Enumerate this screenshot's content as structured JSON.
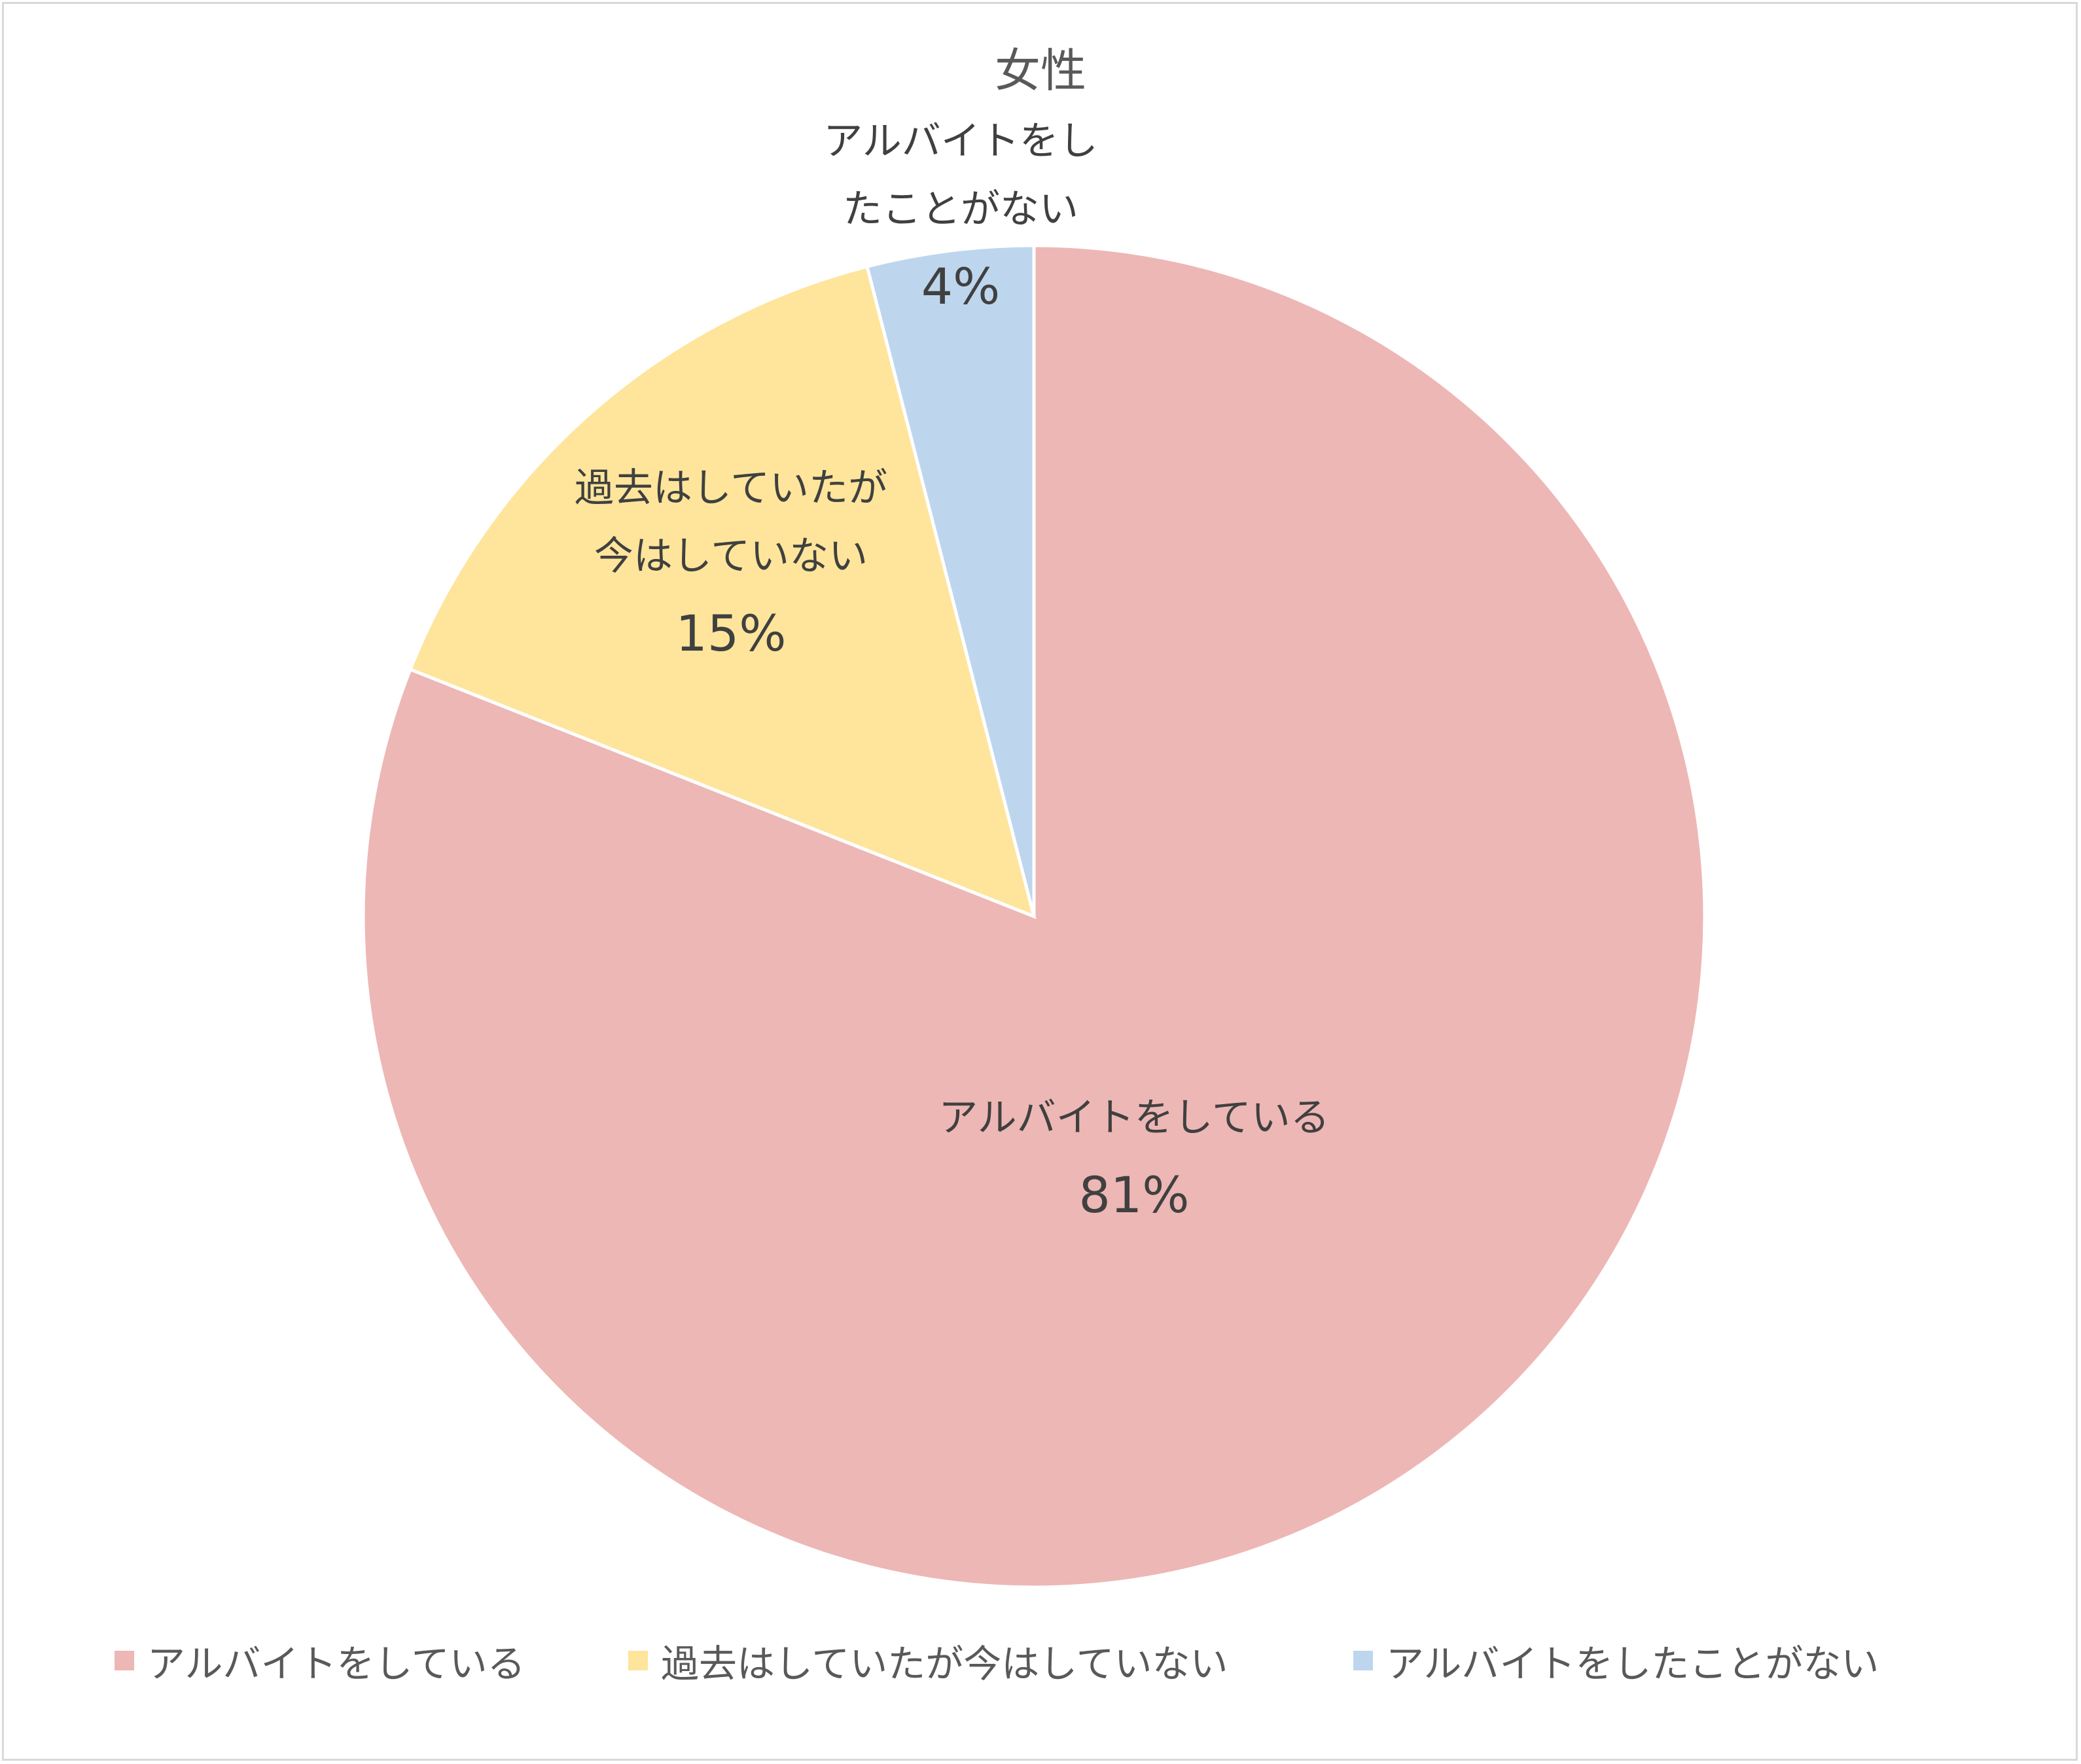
{
  "chart_data": {
    "type": "pie",
    "title": "女性",
    "start_angle_deg": 0,
    "direction": "clockwise",
    "slices": [
      {
        "label": "アルバイトをしている",
        "value": 81,
        "value_label": "81%",
        "color": "#edb7b5",
        "data_label_lines": [
          "アルバイトをしている"
        ]
      },
      {
        "label": "過去はしていたが今はしていない",
        "value": 15,
        "value_label": "15%",
        "color": "#fee59b",
        "data_label_lines": [
          "過去はしていたが",
          "今はしていない"
        ]
      },
      {
        "label": "アルバイトをしたことがない",
        "value": 4,
        "value_label": "4%",
        "color": "#bdd6ee",
        "data_label_lines": [
          "アルバイトをし",
          "たことがない"
        ]
      }
    ],
    "legend": {
      "position": "bottom"
    }
  }
}
